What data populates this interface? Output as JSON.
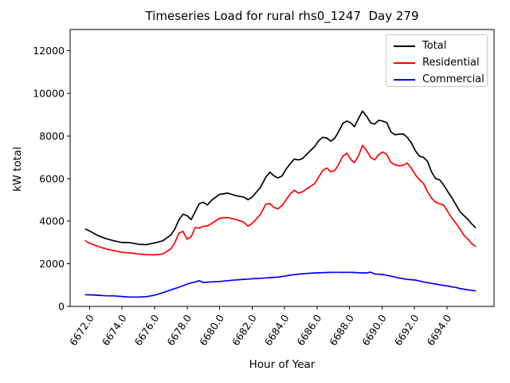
{
  "chart_data": {
    "type": "line",
    "title": "Timeseries Load for rural rhs0_1247  Day 279",
    "xlabel": "Hour of Year",
    "ylabel": "kW total",
    "xlim": [
      6670.8,
      6696.9
    ],
    "ylim": [
      0,
      13000
    ],
    "xticks": [
      6672,
      6674,
      6676,
      6678,
      6680,
      6682,
      6684,
      6686,
      6688,
      6690,
      6692,
      6694
    ],
    "xtick_labels": [
      "6672.0",
      "6674.0",
      "6676.0",
      "6678.0",
      "6680.0",
      "6682.0",
      "6684.0",
      "6686.0",
      "6688.0",
      "6690.0",
      "6692.0",
      "6694.0"
    ],
    "yticks": [
      0,
      2000,
      4000,
      6000,
      8000,
      10000,
      12000
    ],
    "xtick_rotation": 56,
    "grid": false,
    "legend_position": "upper right",
    "x": [
      6671.75,
      6672,
      6672.5,
      6673,
      6673.5,
      6674,
      6674.5,
      6675,
      6675.5,
      6676,
      6676.5,
      6677,
      6677.25,
      6677.5,
      6677.75,
      6678,
      6678.25,
      6678.5,
      6678.75,
      6679,
      6679.25,
      6679.5,
      6680,
      6680.5,
      6681,
      6681.5,
      6681.75,
      6682,
      6682.5,
      6682.85,
      6683.1,
      6683.35,
      6683.6,
      6683.85,
      6684.1,
      6684.35,
      6684.6,
      6684.85,
      6685.1,
      6685.35,
      6685.6,
      6685.85,
      6686.1,
      6686.35,
      6686.6,
      6686.85,
      6687.1,
      6687.35,
      6687.6,
      6687.85,
      6688.1,
      6688.3,
      6688.55,
      6688.8,
      6689.05,
      6689.3,
      6689.55,
      6689.8,
      6690.05,
      6690.3,
      6690.55,
      6690.8,
      6691.05,
      6691.3,
      6691.55,
      6691.8,
      6692.05,
      6692.3,
      6692.55,
      6692.8,
      6693.05,
      6693.3,
      6693.55,
      6693.8,
      6694.05,
      6694.3,
      6694.55,
      6694.8,
      6695.05,
      6695.3,
      6695.5,
      6695.75
    ],
    "series": [
      {
        "name": "Total",
        "color": "#000000",
        "values": [
          3630,
          3540,
          3330,
          3180,
          3080,
          3000,
          2990,
          2920,
          2900,
          2980,
          3080,
          3350,
          3640,
          4075,
          4330,
          4260,
          4075,
          4450,
          4820,
          4890,
          4760,
          4975,
          5260,
          5320,
          5200,
          5130,
          5010,
          5130,
          5570,
          6070,
          6300,
          6130,
          6030,
          6130,
          6450,
          6700,
          6920,
          6880,
          6940,
          7130,
          7320,
          7500,
          7780,
          7940,
          7900,
          7760,
          7900,
          8230,
          8600,
          8700,
          8600,
          8440,
          8820,
          9170,
          8930,
          8620,
          8560,
          8740,
          8700,
          8620,
          8190,
          8060,
          8090,
          8100,
          7940,
          7690,
          7320,
          7060,
          7000,
          6820,
          6320,
          6000,
          5940,
          5700,
          5390,
          5100,
          4780,
          4450,
          4260,
          4080,
          3890,
          3700
        ]
      },
      {
        "name": "Residential",
        "color": "#ff0000",
        "values": [
          3080,
          2960,
          2820,
          2700,
          2620,
          2540,
          2510,
          2460,
          2430,
          2420,
          2460,
          2700,
          3000,
          3450,
          3520,
          3150,
          3270,
          3700,
          3680,
          3760,
          3780,
          3890,
          4140,
          4175,
          4075,
          3950,
          3770,
          3890,
          4300,
          4800,
          4830,
          4640,
          4580,
          4740,
          5010,
          5280,
          5450,
          5320,
          5380,
          5510,
          5630,
          5760,
          6070,
          6380,
          6500,
          6320,
          6380,
          6690,
          7070,
          7190,
          6880,
          6750,
          7070,
          7560,
          7320,
          7000,
          6880,
          7130,
          7250,
          7130,
          6750,
          6650,
          6600,
          6630,
          6730,
          6500,
          6190,
          5950,
          5780,
          5400,
          5080,
          4900,
          4820,
          4750,
          4450,
          4150,
          3900,
          3640,
          3330,
          3150,
          2960,
          2820
        ]
      },
      {
        "name": "Commercial",
        "color": "#0000ff",
        "values": [
          550,
          545,
          525,
          500,
          495,
          465,
          440,
          440,
          460,
          525,
          645,
          775,
          840,
          900,
          975,
          1045,
          1100,
          1150,
          1205,
          1125,
          1140,
          1150,
          1170,
          1205,
          1245,
          1270,
          1282,
          1295,
          1320,
          1338,
          1350,
          1362,
          1375,
          1400,
          1435,
          1465,
          1490,
          1515,
          1532,
          1545,
          1558,
          1568,
          1578,
          1585,
          1592,
          1598,
          1600,
          1598,
          1595,
          1598,
          1600,
          1592,
          1582,
          1575,
          1570,
          1608,
          1520,
          1508,
          1495,
          1458,
          1420,
          1378,
          1335,
          1300,
          1268,
          1255,
          1238,
          1195,
          1148,
          1115,
          1082,
          1050,
          1015,
          985,
          955,
          920,
          890,
          835,
          805,
          775,
          755,
          730
        ]
      }
    ]
  }
}
